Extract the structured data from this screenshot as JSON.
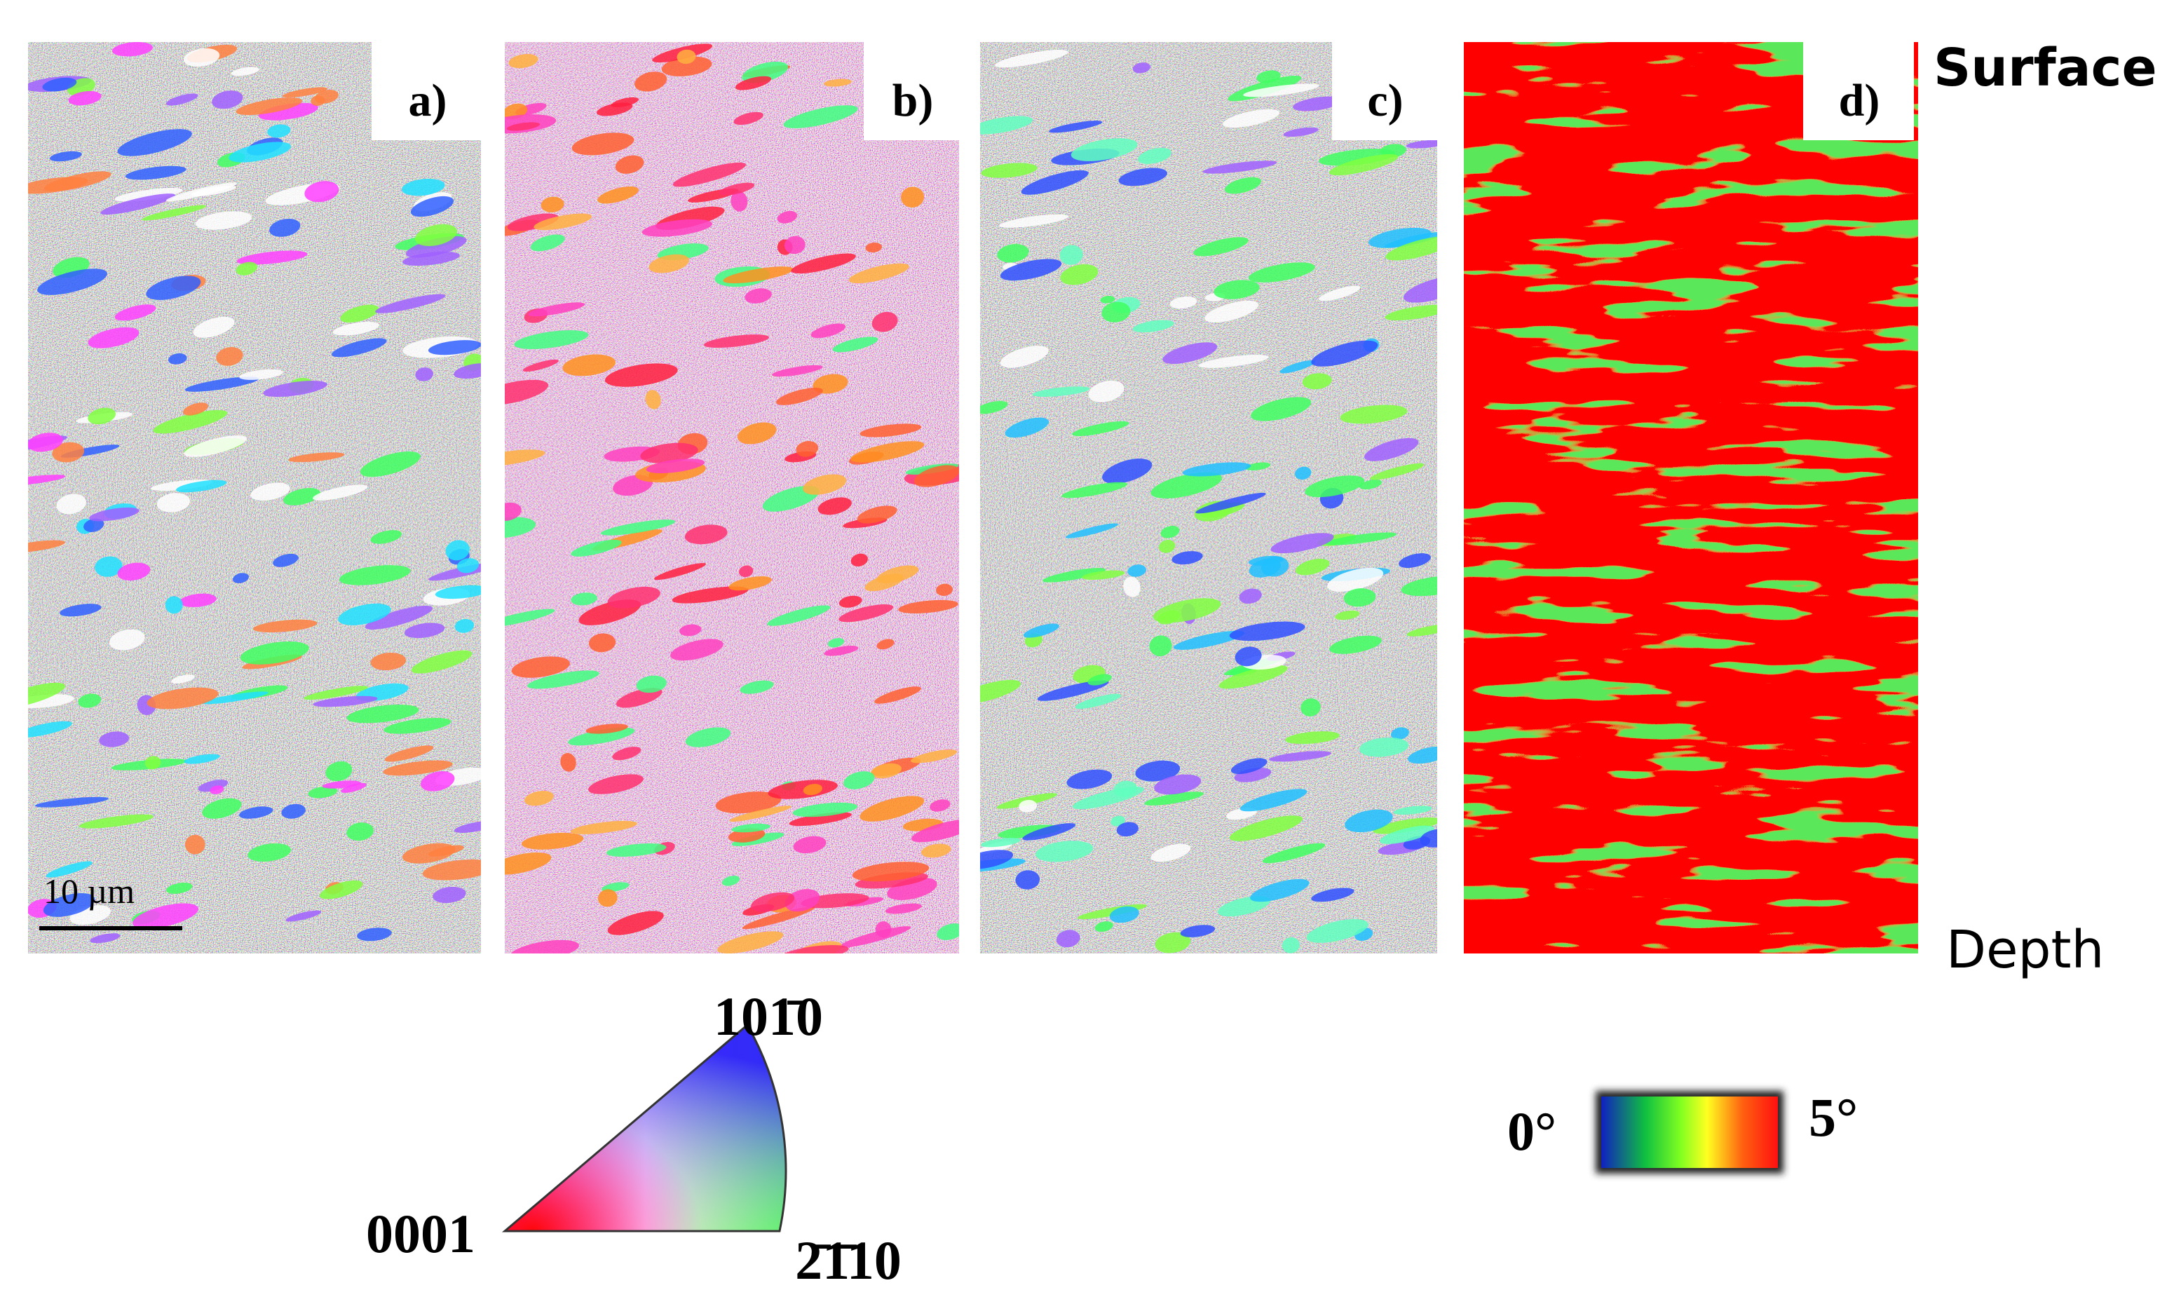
{
  "panels": [
    {
      "label": "a)"
    },
    {
      "label": "b)"
    },
    {
      "label": "c)"
    },
    {
      "label": "d)"
    }
  ],
  "scale_bar": "10 µm",
  "surface": "Surface",
  "depth": "Depth",
  "ipf": {
    "corner_0001": "0001",
    "corner_1010": "101̄0",
    "corner_2110": "2̄1̄10"
  },
  "color_scale": {
    "min": "0°",
    "max": "5°"
  }
}
